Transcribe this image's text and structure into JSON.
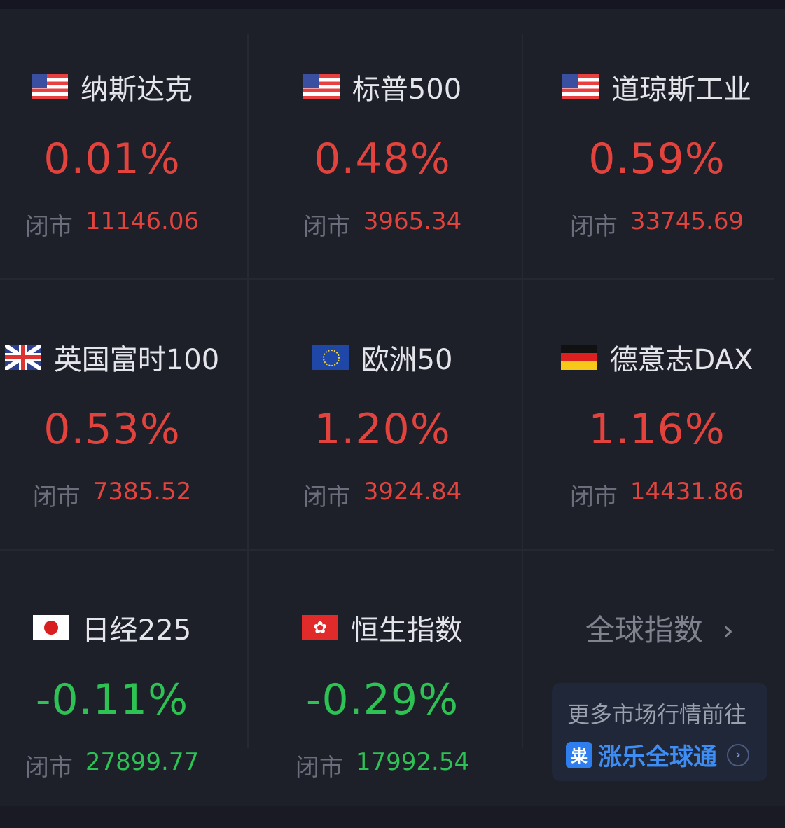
{
  "close_label": "闭市",
  "colors": {
    "up": "#e2433d",
    "down": "#2dc253"
  },
  "indices": [
    {
      "name": "纳斯达克",
      "flag": "us-flag-icon",
      "change": "0.01%",
      "close": "11146.06",
      "trend": "up"
    },
    {
      "name": "标普500",
      "flag": "us-flag-icon",
      "change": "0.48%",
      "close": "3965.34",
      "trend": "up"
    },
    {
      "name": "道琼斯工业",
      "flag": "us-flag-icon",
      "change": "0.59%",
      "close": "33745.69",
      "trend": "up"
    },
    {
      "name": "英国富时100",
      "flag": "uk-flag-icon",
      "change": "0.53%",
      "close": "7385.52",
      "trend": "up"
    },
    {
      "name": "欧洲50",
      "flag": "eu-flag-icon",
      "change": "1.20%",
      "close": "3924.84",
      "trend": "up"
    },
    {
      "name": "德意志DAX",
      "flag": "de-flag-icon",
      "change": "1.16%",
      "close": "14431.86",
      "trend": "up"
    },
    {
      "name": "日经225",
      "flag": "jp-flag-icon",
      "change": "-0.11%",
      "close": "27899.77",
      "trend": "down"
    },
    {
      "name": "恒生指数",
      "flag": "hk-flag-icon",
      "change": "-0.29%",
      "close": "17992.54",
      "trend": "down"
    }
  ],
  "global_link": {
    "label": "全球指数",
    "arrow": "›"
  },
  "promo": {
    "line1": "更多市场行情前往",
    "logo_text": "粜",
    "app_name": "涨乐全球通",
    "arrow": "›"
  }
}
